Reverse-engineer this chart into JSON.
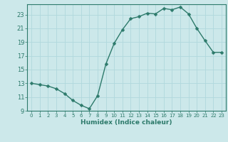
{
  "x": [
    0,
    1,
    2,
    3,
    4,
    5,
    6,
    7,
    8,
    9,
    10,
    11,
    12,
    13,
    14,
    15,
    16,
    17,
    18,
    19,
    20,
    21,
    22,
    23
  ],
  "y": [
    13,
    12.8,
    12.6,
    12.2,
    11.5,
    10.5,
    9.8,
    9.3,
    11.2,
    15.8,
    18.8,
    20.8,
    22.4,
    22.7,
    23.2,
    23.1,
    23.9,
    23.7,
    24.1,
    23.1,
    21.0,
    19.2,
    17.5,
    17.5
  ],
  "ylim": [
    9,
    24.5
  ],
  "yticks": [
    9,
    11,
    13,
    15,
    17,
    19,
    21,
    23
  ],
  "xticks": [
    0,
    1,
    2,
    3,
    4,
    5,
    6,
    7,
    8,
    9,
    10,
    11,
    12,
    13,
    14,
    15,
    16,
    17,
    18,
    19,
    20,
    21,
    22,
    23
  ],
  "xlabel": "Humidex (Indice chaleur)",
  "line_color": "#2d7a6b",
  "marker_color": "#2d7a6b",
  "bg_color": "#cce8ea",
  "grid_color": "#b0d8dc",
  "axis_color": "#2d7a6b",
  "tick_color": "#2d7a6b",
  "label_color": "#2d7a6b",
  "marker_size": 2.5,
  "line_width": 1.0
}
